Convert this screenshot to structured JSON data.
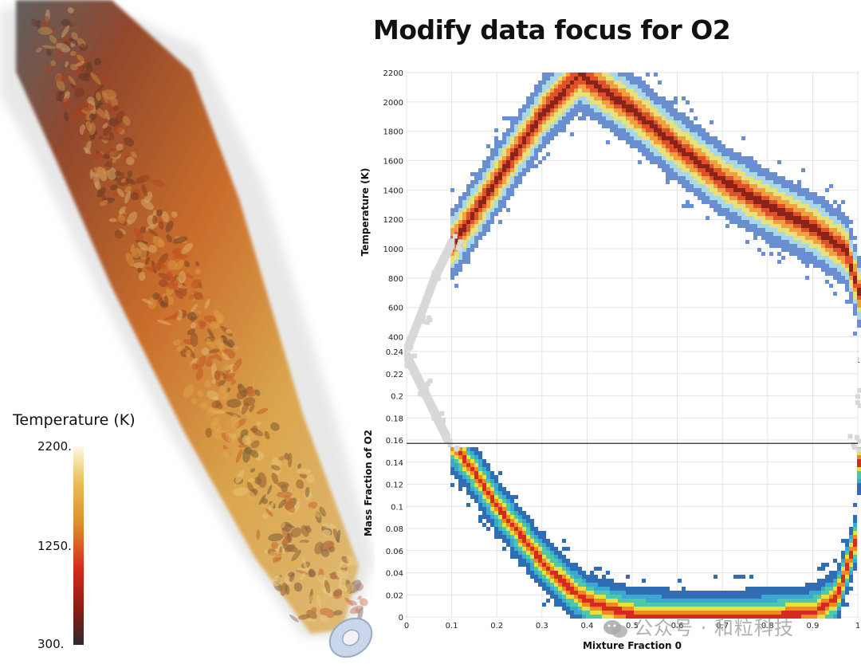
{
  "title": "Modify data focus for O2",
  "colorbar": {
    "title": "Temperature (K)",
    "ticks": [
      "2200.",
      "1250.",
      "300."
    ],
    "colors": [
      "#fff8e6",
      "#e8c055",
      "#dd8a2a",
      "#d42a1f",
      "#8a1d12",
      "#2d2b2b"
    ]
  },
  "watermark": {
    "text": "公众号 · 和粒科技",
    "icon": "wechat-icon"
  },
  "chart_data": [
    {
      "type": "heatmap",
      "title": "",
      "xlabel": "",
      "ylabel": "Temperature (K)",
      "xlim": [
        0,
        1
      ],
      "ylim": [
        300,
        2200
      ],
      "x_ticks": [
        "0",
        "0.1",
        "0.2",
        "0.3",
        "0.4",
        "0.5",
        "0.6",
        "0.7",
        "0.8",
        "0.9",
        "1"
      ],
      "y_ticks": [
        "400",
        "600",
        "800",
        "1000",
        "1200",
        "1400",
        "1600",
        "1800",
        "2000",
        "2200"
      ],
      "grid": true,
      "ridge": {
        "x": [
          0.1,
          0.2,
          0.3,
          0.38,
          0.5,
          0.6,
          0.7,
          0.8,
          0.9,
          0.97,
          1.0
        ],
        "y": [
          1050,
          1500,
          1950,
          2200,
          1950,
          1700,
          1470,
          1300,
          1150,
          1000,
          700
        ]
      },
      "unfocused_gray_region": {
        "x": [
          0,
          0.03,
          0.06,
          0.1
        ],
        "y": [
          320,
          550,
          800,
          1050
        ]
      },
      "colors": [
        "#d8d8d8",
        "#6a8fd0",
        "#a8d8e8",
        "#e8e07a",
        "#f0a040",
        "#e0502a",
        "#8b2418"
      ]
    },
    {
      "type": "heatmap",
      "title": "",
      "xlabel": "Mixture Fraction 0",
      "ylabel": "Mass Fraction of O2",
      "xlim": [
        0,
        1
      ],
      "ylim": [
        0,
        0.24
      ],
      "x_ticks": [
        "0",
        "0.1",
        "0.2",
        "0.3",
        "0.4",
        "0.5",
        "0.6",
        "0.7",
        "0.8",
        "0.9",
        "1"
      ],
      "y_ticks": [
        "0",
        "0.02",
        "0.04",
        "0.06",
        "0.08",
        "0.1",
        "0.12",
        "0.14",
        "0.16",
        "0.18",
        "0.2",
        "0.22",
        "0.24"
      ],
      "grid": true,
      "focus_threshold": 0.157,
      "ridge": {
        "x": [
          0.1,
          0.15,
          0.2,
          0.25,
          0.3,
          0.35,
          0.4,
          0.5,
          0.6,
          0.7,
          0.8,
          0.9,
          0.95,
          0.99,
          1.0
        ],
        "y": [
          0.157,
          0.13,
          0.1,
          0.075,
          0.05,
          0.03,
          0.015,
          0.003,
          0.001,
          0.001,
          0.002,
          0.006,
          0.02,
          0.07,
          0.157
        ]
      },
      "unfocused_gray_region": {
        "x": [
          0,
          0.03,
          0.06,
          0.09,
          0.98,
          1.0
        ],
        "y": [
          0.235,
          0.21,
          0.185,
          0.16,
          0.16,
          0.2
        ]
      },
      "colors": [
        "#d8d8d8",
        "#2f6db5",
        "#3aa8d0",
        "#4dc8a8",
        "#e8e040",
        "#f08a20",
        "#d42a1f"
      ]
    }
  ]
}
